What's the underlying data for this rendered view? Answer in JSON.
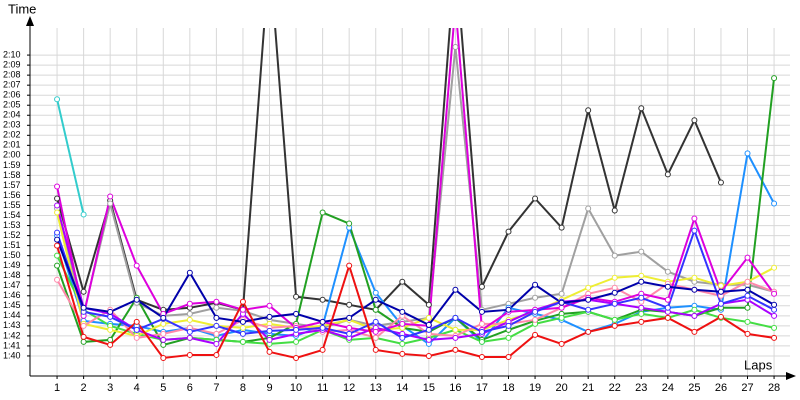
{
  "chart_data": {
    "type": "line",
    "y_label": "Time",
    "x_label": "Laps",
    "x": [
      1,
      2,
      3,
      4,
      5,
      6,
      7,
      8,
      9,
      10,
      11,
      12,
      13,
      14,
      15,
      16,
      17,
      18,
      19,
      20,
      21,
      22,
      23,
      24,
      25,
      26,
      27,
      28
    ],
    "xlim": [
      0,
      28.6
    ],
    "xticks": [
      1,
      2,
      3,
      4,
      5,
      6,
      7,
      8,
      9,
      10,
      11,
      12,
      13,
      14,
      15,
      16,
      17,
      18,
      19,
      20,
      21,
      22,
      23,
      24,
      25,
      26,
      27,
      28
    ],
    "ylim": [
      98,
      132.7
    ],
    "yticks": [
      {
        "value": 100,
        "label": "1:40"
      },
      {
        "value": 101,
        "label": "1:41"
      },
      {
        "value": 102,
        "label": "1:42"
      },
      {
        "value": 103,
        "label": "1:43"
      },
      {
        "value": 104,
        "label": "1:44"
      },
      {
        "value": 105,
        "label": "1:45"
      },
      {
        "value": 106,
        "label": "1:46"
      },
      {
        "value": 107,
        "label": "1:47"
      },
      {
        "value": 108,
        "label": "1:48"
      },
      {
        "value": 109,
        "label": "1:49"
      },
      {
        "value": 110,
        "label": "1:50"
      },
      {
        "value": 111,
        "label": "1:51"
      },
      {
        "value": 112,
        "label": "1:52"
      },
      {
        "value": 113,
        "label": "1:53"
      },
      {
        "value": 114,
        "label": "1:54"
      },
      {
        "value": 115,
        "label": "1:55"
      },
      {
        "value": 116,
        "label": "1:56"
      },
      {
        "value": 117,
        "label": "1:57"
      },
      {
        "value": 118,
        "label": "1:58"
      },
      {
        "value": 119,
        "label": "1:59"
      },
      {
        "value": 120,
        "label": "2:00"
      },
      {
        "value": 121,
        "label": "2:01"
      },
      {
        "value": 122,
        "label": "2:02"
      },
      {
        "value": 123,
        "label": "2:03"
      },
      {
        "value": 124,
        "label": "2:04"
      },
      {
        "value": 125,
        "label": "2:05"
      },
      {
        "value": 126,
        "label": "2:06"
      },
      {
        "value": 127,
        "label": "2:07"
      },
      {
        "value": 128,
        "label": "2:08"
      },
      {
        "value": 129,
        "label": "2:09"
      },
      {
        "value": 130,
        "label": "2:10"
      }
    ],
    "grid": true,
    "series": [
      {
        "color": "#333333",
        "values": [
          115.7,
          106.4,
          115.5,
          105.6,
          104.6,
          104.8,
          105.3,
          104.6,
          140,
          105.9,
          105.6,
          105.1,
          104.6,
          107.4,
          105.1,
          140,
          106.9,
          112.4,
          115.7,
          112.8,
          124.5,
          114.5,
          124.7,
          118.1,
          123.5,
          117.3,
          null,
          null
        ]
      },
      {
        "color": "#a0a0a0",
        "values": [
          114.7,
          104.2,
          115.2,
          105.3,
          104.0,
          104.2,
          104.8,
          104.5,
          103.6,
          103.2,
          102.8,
          103.6,
          103.0,
          103.4,
          103.8,
          130.8,
          104.6,
          105.2,
          105.8,
          106.2,
          114.7,
          110.0,
          110.4,
          108.4,
          107.4,
          107.1,
          107.1,
          106.4
        ]
      },
      {
        "color": "#33cccc",
        "values": [
          125.6,
          114.1,
          null,
          null,
          null,
          null,
          null,
          null,
          null,
          null,
          null,
          null,
          null,
          null,
          null,
          null,
          null,
          null,
          null,
          null,
          null,
          null,
          null,
          null,
          null,
          null,
          null,
          null
        ]
      },
      {
        "color": "#1e90ff",
        "values": [
          112.0,
          103.5,
          103.2,
          103.0,
          102.4,
          102.8,
          102.0,
          102.6,
          102.2,
          102.0,
          103.0,
          112.8,
          106.3,
          103.0,
          101.2,
          103.8,
          101.4,
          104.8,
          104.2,
          103.6,
          102.4,
          103.2,
          104.4,
          104.8,
          105.0,
          104.6,
          120.2,
          115.2
        ]
      },
      {
        "color": "#22a022",
        "values": [
          109.0,
          101.4,
          101.6,
          105.8,
          101.1,
          101.8,
          101.6,
          101.4,
          101.8,
          103.2,
          114.3,
          113.2,
          104.6,
          102.8,
          102.4,
          103.8,
          101.6,
          102.6,
          103.5,
          104.2,
          104.4,
          103.6,
          104.6,
          104.4,
          104.0,
          104.8,
          104.8,
          127.7
        ]
      },
      {
        "color": "#44dd44",
        "values": [
          110.0,
          104.6,
          103.0,
          102.2,
          101.6,
          101.8,
          101.6,
          101.4,
          101.2,
          101.4,
          102.6,
          101.6,
          101.8,
          101.2,
          101.8,
          102.6,
          101.4,
          101.8,
          103.2,
          103.8,
          104.4,
          103.6,
          104.2,
          103.8,
          104.6,
          103.8,
          103.4,
          102.8
        ]
      },
      {
        "color": "#eeee33",
        "values": [
          114.3,
          103.2,
          102.6,
          102.0,
          103.2,
          103.6,
          103.0,
          102.8,
          103.2,
          102.8,
          103.0,
          103.6,
          102.6,
          102.8,
          103.8,
          102.6,
          102.6,
          103.6,
          104.4,
          105.6,
          106.8,
          107.8,
          108.0,
          107.4,
          107.8,
          107.0,
          107.4,
          108.8
        ]
      },
      {
        "color": "#ff88aa",
        "values": [
          107.6,
          103.0,
          104.6,
          101.8,
          102.2,
          102.8,
          102.2,
          103.6,
          102.8,
          103.0,
          102.4,
          102.6,
          101.8,
          104.0,
          102.2,
          102.0,
          103.2,
          103.2,
          103.6,
          104.8,
          106.2,
          106.8,
          105.4,
          107.2,
          106.6,
          106.0,
          107.4,
          106.4
        ]
      },
      {
        "color": "#aa00ff",
        "values": [
          115.0,
          104.8,
          104.2,
          102.6,
          101.6,
          101.8,
          101.2,
          104.2,
          101.6,
          102.2,
          102.6,
          101.8,
          102.8,
          102.2,
          101.6,
          101.8,
          102.2,
          103.4,
          104.6,
          105.4,
          105.6,
          105.2,
          104.8,
          104.4,
          104.0,
          105.2,
          105.6,
          104.0
        ]
      },
      {
        "color": "#dd00dd",
        "values": [
          116.9,
          104.0,
          115.9,
          109.0,
          104.2,
          105.2,
          105.4,
          104.6,
          105.0,
          102.8,
          103.4,
          102.8,
          102.4,
          103.2,
          103.0,
          135.0,
          102.6,
          104.4,
          104.6,
          104.8,
          105.8,
          105.4,
          106.2,
          105.6,
          113.7,
          106.4,
          109.8,
          106.2
        ]
      },
      {
        "color": "#3333ff",
        "values": [
          112.3,
          104.4,
          103.9,
          102.6,
          103.7,
          102.4,
          103.0,
          102.2,
          102.5,
          102.6,
          102.8,
          102.2,
          103.4,
          101.8,
          102.6,
          103.8,
          102.4,
          103.0,
          104.4,
          105.4,
          104.6,
          105.2,
          105.8,
          104.8,
          112.5,
          105.2,
          106.0,
          104.6
        ]
      },
      {
        "color": "#0000aa",
        "values": [
          111.6,
          104.8,
          104.4,
          105.6,
          103.8,
          108.3,
          103.8,
          103.4,
          103.9,
          104.2,
          103.4,
          103.8,
          105.6,
          104.4,
          103.1,
          106.6,
          104.4,
          104.6,
          107.1,
          105.3,
          105.6,
          106.3,
          107.4,
          106.9,
          106.6,
          106.4,
          106.6,
          105.1
        ]
      },
      {
        "color": "#ee1111",
        "values": [
          111.0,
          101.9,
          101.1,
          103.4,
          99.8,
          100.1,
          100.1,
          105.4,
          100.4,
          99.8,
          100.6,
          109.0,
          100.6,
          100.2,
          100.0,
          100.6,
          99.9,
          99.9,
          102.1,
          101.2,
          102.4,
          103.0,
          103.4,
          103.8,
          102.4,
          103.9,
          102.2,
          101.8
        ]
      }
    ]
  }
}
